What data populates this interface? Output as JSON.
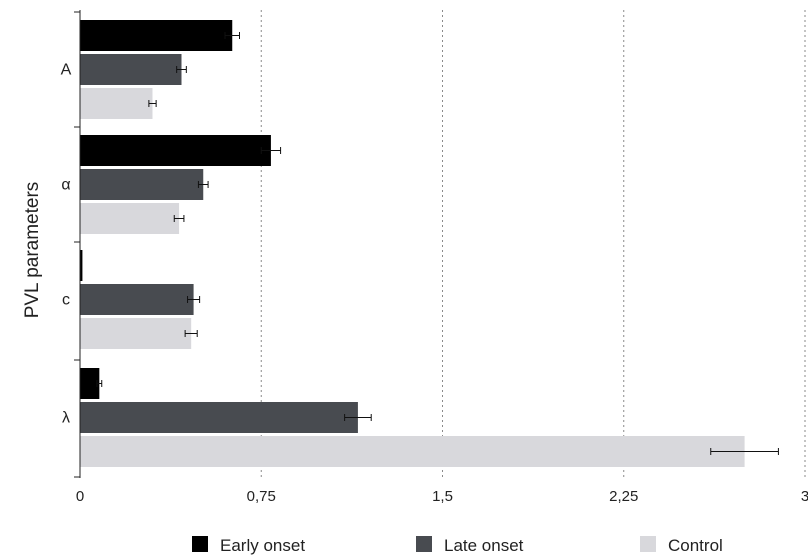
{
  "chart_data": {
    "type": "bar",
    "orientation": "horizontal",
    "title": "",
    "xlabel": "",
    "ylabel": "PVL parameters",
    "categories": [
      "A",
      "α",
      "c",
      "λ"
    ],
    "xlim": [
      0,
      3
    ],
    "x_ticks": [
      0,
      0.75,
      1.5,
      2.25,
      3
    ],
    "x_tick_labels": [
      "0",
      "0,75",
      "1,5",
      "2,25",
      "3"
    ],
    "grid": "vertical dotted gridlines",
    "legend_position": "bottom",
    "series": [
      {
        "name": "Early onset",
        "color": "#000000",
        "values": [
          0.63,
          0.79,
          0.01,
          0.08
        ],
        "errors": [
          0.03,
          0.04,
          0.0,
          0.01
        ]
      },
      {
        "name": "Late onset",
        "color": "#484b50",
        "values": [
          0.42,
          0.51,
          0.47,
          1.15
        ],
        "errors": [
          0.02,
          0.02,
          0.025,
          0.055
        ]
      },
      {
        "name": "Control",
        "color": "#d8d8dc",
        "values": [
          0.3,
          0.41,
          0.46,
          2.75
        ],
        "errors": [
          0.015,
          0.02,
          0.025,
          0.14
        ]
      }
    ]
  }
}
